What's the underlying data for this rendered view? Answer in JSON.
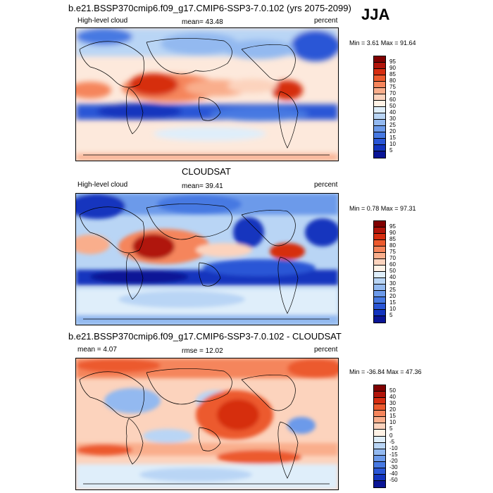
{
  "season": "JJA",
  "panels": [
    {
      "title": "b.e21.BSSP370cmip6.f09_g17.CMIP6-SSP3-7.0.102 (yrs 2075-2099)",
      "left_label": "High-level cloud",
      "center_label": "mean=  43.48",
      "right_label": "percent",
      "minmax": "Min =   3.61 Max =  91.64"
    },
    {
      "title": "CLOUDSAT",
      "left_label": "High-level cloud",
      "center_label": "mean=  39.41",
      "right_label": "percent",
      "minmax": "Min =   0.78 Max =  97.31"
    },
    {
      "title": "b.e21.BSSP370cmip6.f09_g17.CMIP6-SSP3-7.0.102 - CLOUDSAT",
      "left_label": "mean =   4.07",
      "center_label": "rmse =  12.02",
      "right_label": "percent",
      "minmax": "Min = -36.84 Max =  47.36"
    }
  ],
  "colorbar_abs": {
    "labels": [
      "95",
      "90",
      "85",
      "80",
      "75",
      "70",
      "60",
      "50",
      "40",
      "30",
      "25",
      "20",
      "15",
      "10",
      "5"
    ],
    "colors": [
      "#800000",
      "#b0140a",
      "#d62d10",
      "#ec5a2e",
      "#f5855c",
      "#f9ae8c",
      "#fcd3bd",
      "#fff2e6",
      "#dfeefa",
      "#b9d5f5",
      "#93b9f0",
      "#6c9aea",
      "#4779e2",
      "#2a56d6",
      "#1334be",
      "#0a1596"
    ]
  },
  "colorbar_diff": {
    "labels": [
      "50",
      "40",
      "30",
      "20",
      "15",
      "10",
      "5",
      "0",
      "-5",
      "-10",
      "-15",
      "-20",
      "-30",
      "-40",
      "-50"
    ],
    "colors": [
      "#800000",
      "#b0140a",
      "#d62d10",
      "#ec5a2e",
      "#f5855c",
      "#f9ae8c",
      "#fcd3bd",
      "#fff2e6",
      "#dfeefa",
      "#b9d5f5",
      "#93b9f0",
      "#6c9aea",
      "#4779e2",
      "#2a56d6",
      "#1334be",
      "#0a1596"
    ]
  }
}
